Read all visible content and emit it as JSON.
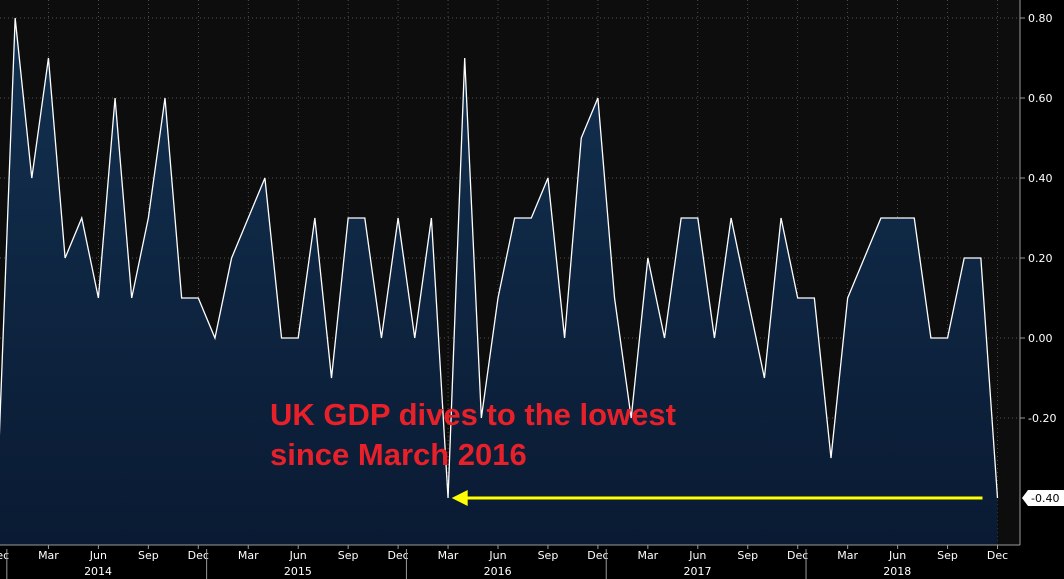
{
  "annotation": {
    "line1": "UK GDP dives to the lowest",
    "line2": "since March 2016"
  },
  "colors": {
    "background": "#000000",
    "plot_background": "#0d0d0d",
    "area_fill_top": "#123150",
    "area_fill_bottom": "#0a1a33",
    "line": "#ffffff",
    "annotation_text": "#e8202a",
    "arrow": "#ffff00",
    "grid": "#6a6a6a"
  },
  "chart_data": {
    "type": "area",
    "title": "",
    "xlabel": "",
    "ylabel": "",
    "ylim": [
      -0.5,
      0.85
    ],
    "y_ticks": [
      "0.80",
      "0.60",
      "0.40",
      "0.20",
      "0.00",
      "-0.20"
    ],
    "last_value_label": "-0.40",
    "x_month_labels": [
      "Dec",
      "Mar",
      "Jun",
      "Sep",
      "Dec",
      "Mar",
      "Jun",
      "Sep",
      "Dec",
      "Mar",
      "Jun",
      "Sep",
      "Dec",
      "Mar",
      "Jun",
      "Sep",
      "Dec",
      "Mar",
      "Jun",
      "Sep",
      "Dec"
    ],
    "x_year_labels": [
      "2014",
      "2015",
      "2016",
      "2017",
      "2018"
    ],
    "grid": true,
    "series": [
      {
        "x": [
          "2013-12",
          "2014-01",
          "2014-02",
          "2014-03",
          "2014-04",
          "2014-05",
          "2014-06",
          "2014-07",
          "2014-08",
          "2014-09",
          "2014-10",
          "2014-11",
          "2014-12",
          "2015-01",
          "2015-02",
          "2015-03",
          "2015-04",
          "2015-05",
          "2015-06",
          "2015-07",
          "2015-08",
          "2015-09",
          "2015-10",
          "2015-11",
          "2015-12",
          "2016-01",
          "2016-02",
          "2016-03",
          "2016-04",
          "2016-05",
          "2016-06",
          "2016-07",
          "2016-08",
          "2016-09",
          "2016-10",
          "2016-11",
          "2016-12",
          "2017-01",
          "2017-02",
          "2017-03",
          "2017-04",
          "2017-05",
          "2017-06",
          "2017-07",
          "2017-08",
          "2017-09",
          "2017-10",
          "2017-11",
          "2017-12",
          "2018-01",
          "2018-02",
          "2018-03",
          "2018-04",
          "2018-05",
          "2018-06",
          "2018-07",
          "2018-08",
          "2018-09",
          "2018-10",
          "2018-11",
          "2018-12"
        ],
        "values": [
          -0.3,
          0.8,
          0.4,
          0.7,
          0.2,
          0.3,
          0.1,
          0.6,
          0.1,
          0.3,
          0.6,
          0.1,
          0.1,
          0.0,
          0.2,
          0.3,
          0.4,
          0.0,
          0.0,
          0.3,
          -0.1,
          0.3,
          0.3,
          0.0,
          0.3,
          0.0,
          0.3,
          -0.4,
          0.7,
          -0.2,
          0.1,
          0.3,
          0.3,
          0.4,
          0.0,
          0.5,
          0.6,
          0.1,
          -0.2,
          0.2,
          0.0,
          0.3,
          0.3,
          0.0,
          0.3,
          0.1,
          -0.1,
          0.3,
          0.1,
          0.1,
          -0.3,
          0.1,
          0.2,
          0.3,
          0.3,
          0.3,
          0.0,
          0.0,
          0.2,
          0.2,
          -0.4
        ]
      }
    ],
    "arrow": {
      "from": "2018-12",
      "to": "2016-04",
      "y": -0.4
    }
  }
}
